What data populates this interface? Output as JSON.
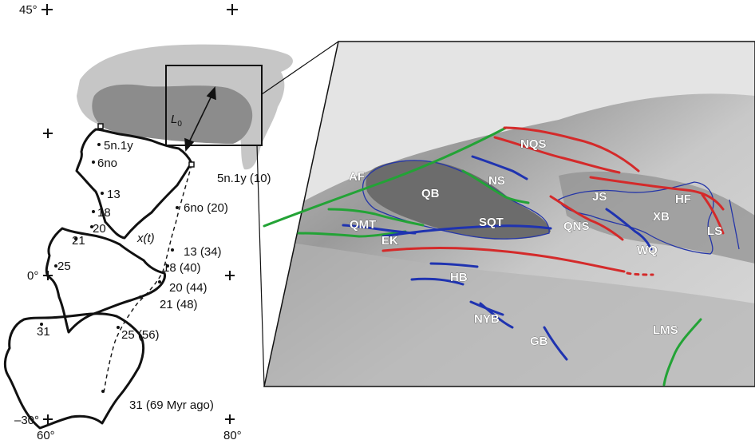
{
  "grid": {
    "lat_top": "45°",
    "lat_mid": "0°",
    "lat_bottom": "–30°",
    "lon_left": "60°",
    "lon_right": "80°"
  },
  "reconstruction": {
    "length_label": "L",
    "length_subscript": "0",
    "track_label": "x(t)",
    "ages_left": [
      "5n.1y",
      "6no",
      "13",
      "18",
      "20",
      "21",
      "25",
      "31"
    ],
    "ages_right": [
      "5n.1y (10)",
      "6no (20)",
      "13 (34)",
      "18 (40)",
      "20 (44)",
      "21 (48)",
      "25 (56)",
      "31 (69 Myr ago)"
    ]
  },
  "inset": {
    "faults": [
      "NQS",
      "AF",
      "NS",
      "QB",
      "JS",
      "HF",
      "XB",
      "SQT",
      "QMT",
      "QNS",
      "EK",
      "LS",
      "WQ",
      "HB",
      "NYB",
      "GB",
      "LMS"
    ]
  },
  "colors": {
    "red_fault": "#d42a2a",
    "green_fault": "#23a336",
    "blue_fault": "#1f33b0",
    "coast": "#111111",
    "tibet_grey": "#bdbdbd"
  }
}
